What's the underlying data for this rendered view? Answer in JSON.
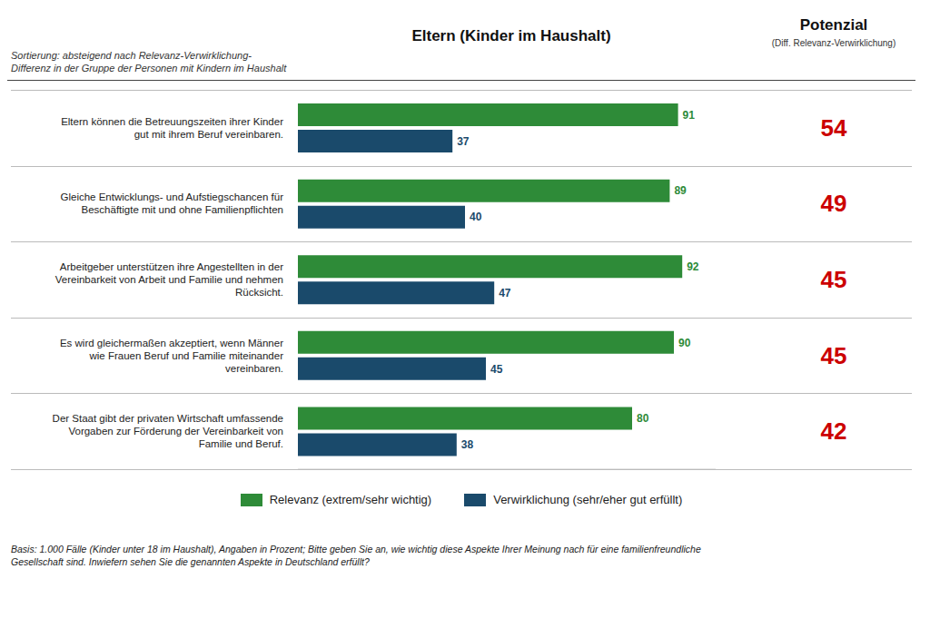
{
  "chart_data": {
    "type": "bar",
    "orientation": "horizontal",
    "title": "Eltern (Kinder im Haushalt)",
    "annotations": [
      "Sortierung: absteigend nach Relevanz-Verwirklichung-\nDifferenz in der Gruppe der Personen mit Kindern im Haushalt",
      "Basis: 1.000 Fälle (Kinder unter 18 im Haushalt), Angaben in Prozent; Bitte geben Sie an, wie wichtig diese Aspekte Ihrer Meinung nach für eine familienfreundliche\nGesellschaft sind. Inwiefern sehen Sie die genannten Aspekte in Deutschland erfüllt?"
    ],
    "categories": [
      "Eltern können die Betreuungszeiten ihrer Kinder\ngut mit ihrem Beruf vereinbaren.",
      "Gleiche Entwicklungs- und Aufstiegschancen für\nBeschäftigte mit und ohne Familienpflichten",
      "Arbeitgeber unterstützen ihre Angestellten in der\nVereinbarkeit von Arbeit und Familie und nehmen\nRücksicht.",
      "Es wird gleichermaßen akzeptiert, wenn Männer\nwie Frauen Beruf und Familie miteinander\nvereinbaren.",
      "Der Staat gibt der privaten Wirtschaft umfassende\nVorgaben zur Förderung der Vereinbarkeit von\nFamilie und Beruf."
    ],
    "series": [
      {
        "name": "Relevanz (extrem/sehr wichtig)",
        "color": "#2e8b38",
        "values": [
          91,
          89,
          92,
          90,
          80
        ]
      },
      {
        "name": "Verwirklichung (sehr/eher gut erfüllt)",
        "color": "#1a4a6b",
        "values": [
          37,
          40,
          47,
          45,
          38
        ]
      }
    ],
    "potenzial": {
      "name": "Potenzial",
      "label": "(Diff. Relevanz-Verwirklichung)",
      "color": "#cc0000",
      "values": [
        54,
        49,
        45,
        45,
        42
      ]
    },
    "xlim": [
      0,
      100
    ],
    "tick_labels": false,
    "data_labels": true,
    "grid": false,
    "legend": "bottom"
  }
}
